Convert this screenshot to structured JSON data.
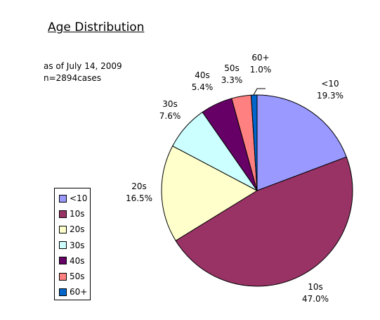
{
  "chart_data": {
    "type": "pie",
    "title": "Age Distribution",
    "subtitle_lines": [
      "as of July 14, 2009",
      "n=2894cases"
    ],
    "categories": [
      "<10",
      "10s",
      "20s",
      "30s",
      "40s",
      "50s",
      "60+"
    ],
    "values": [
      19.3,
      47.0,
      16.5,
      7.6,
      5.4,
      3.3,
      1.0
    ],
    "value_labels": [
      "19.3%",
      "47.0%",
      "16.5%",
      "7.6%",
      "5.4%",
      "3.3%",
      "1.0%"
    ],
    "colors": [
      "#9999ff",
      "#993366",
      "#ffffcc",
      "#ccffff",
      "#660066",
      "#ff8080",
      "#0066cc"
    ],
    "start": "12 o'clock, clockwise",
    "legend_position": "left"
  }
}
